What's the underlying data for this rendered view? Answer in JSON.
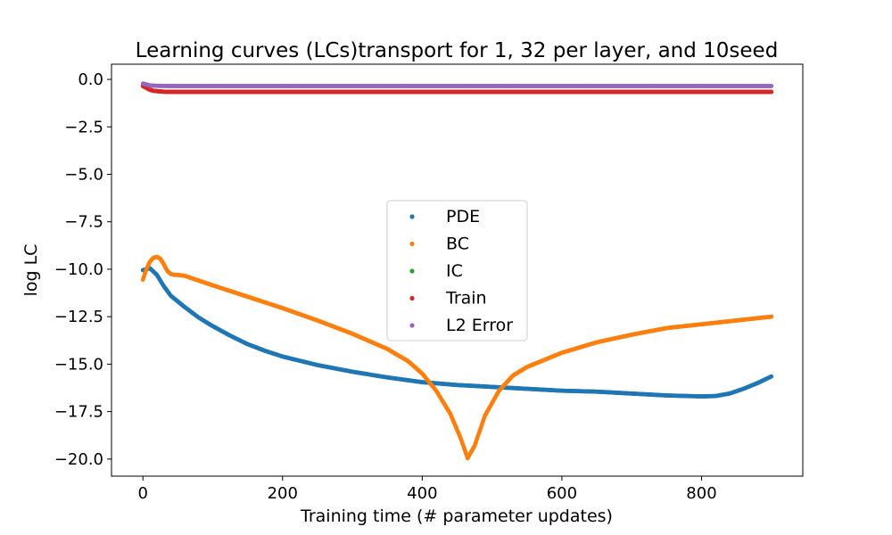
{
  "chart_data": {
    "type": "scatter",
    "title": "Learning curves (LCs)transport for 1, 32 per layer, and 10seed",
    "xlabel": "Training time (# parameter updates)",
    "ylabel": "log LC",
    "xlim": [
      -45,
      945
    ],
    "ylim": [
      -20.9,
      0.8
    ],
    "xticks": [
      0,
      200,
      400,
      600,
      800
    ],
    "xtick_labels": [
      "0",
      "200",
      "400",
      "600",
      "800"
    ],
    "yticks": [
      0.0,
      -2.5,
      -5.0,
      -7.5,
      -10.0,
      -12.5,
      -15.0,
      -17.5,
      -20.0
    ],
    "ytick_labels": [
      "0.0",
      "−2.5",
      "−5.0",
      "−7.5",
      "−10.0",
      "−12.5",
      "−15.0",
      "−17.5",
      "−20.0"
    ],
    "grid": false,
    "legend_position": "center",
    "series": [
      {
        "name": "PDE",
        "color": "#1f77b4",
        "x": [
          0,
          10,
          20,
          30,
          40,
          50,
          60,
          80,
          100,
          125,
          150,
          175,
          200,
          250,
          300,
          350,
          400,
          450,
          500,
          550,
          600,
          650,
          700,
          750,
          800,
          820,
          840,
          860,
          880,
          900
        ],
        "y": [
          -10.05,
          -9.95,
          -10.3,
          -10.9,
          -11.4,
          -11.7,
          -12.0,
          -12.55,
          -13.0,
          -13.5,
          -13.95,
          -14.3,
          -14.6,
          -15.05,
          -15.4,
          -15.7,
          -15.95,
          -16.1,
          -16.2,
          -16.3,
          -16.4,
          -16.45,
          -16.55,
          -16.65,
          -16.7,
          -16.68,
          -16.55,
          -16.3,
          -16.0,
          -15.65
        ]
      },
      {
        "name": "BC",
        "color": "#ff7f0e",
        "x": [
          0,
          5,
          10,
          15,
          20,
          25,
          30,
          35,
          40,
          45,
          50,
          60,
          80,
          100,
          150,
          200,
          250,
          300,
          350,
          380,
          400,
          420,
          440,
          455,
          465,
          475,
          490,
          510,
          530,
          550,
          600,
          650,
          700,
          750,
          800,
          850,
          900
        ],
        "y": [
          -10.55,
          -10.0,
          -9.6,
          -9.4,
          -9.35,
          -9.45,
          -9.75,
          -10.1,
          -10.25,
          -10.3,
          -10.3,
          -10.35,
          -10.6,
          -10.85,
          -11.45,
          -12.05,
          -12.7,
          -13.4,
          -14.2,
          -14.85,
          -15.5,
          -16.4,
          -17.6,
          -18.9,
          -19.95,
          -19.3,
          -17.7,
          -16.4,
          -15.6,
          -15.15,
          -14.4,
          -13.85,
          -13.45,
          -13.1,
          -12.9,
          -12.7,
          -12.5
        ]
      },
      {
        "name": "IC",
        "color": "#2ca02c",
        "x": [
          0,
          5,
          10,
          15,
          20,
          30,
          50,
          100,
          200,
          300,
          400,
          500,
          600,
          700,
          800,
          900
        ],
        "y": [
          -0.35,
          -0.45,
          -0.55,
          -0.6,
          -0.62,
          -0.65,
          -0.66,
          -0.66,
          -0.66,
          -0.66,
          -0.66,
          -0.66,
          -0.66,
          -0.66,
          -0.66,
          -0.66
        ]
      },
      {
        "name": "Train",
        "color": "#d62728",
        "x": [
          0,
          5,
          10,
          15,
          20,
          30,
          50,
          100,
          200,
          300,
          400,
          500,
          600,
          700,
          800,
          900
        ],
        "y": [
          -0.35,
          -0.45,
          -0.55,
          -0.6,
          -0.62,
          -0.65,
          -0.66,
          -0.66,
          -0.66,
          -0.66,
          -0.66,
          -0.66,
          -0.66,
          -0.66,
          -0.66,
          -0.66
        ]
      },
      {
        "name": "L2 Error",
        "color": "#9467bd",
        "x": [
          0,
          5,
          10,
          20,
          40,
          100,
          200,
          300,
          400,
          500,
          600,
          700,
          800,
          900
        ],
        "y": [
          -0.22,
          -0.27,
          -0.32,
          -0.34,
          -0.35,
          -0.35,
          -0.35,
          -0.35,
          -0.35,
          -0.35,
          -0.35,
          -0.35,
          -0.35,
          -0.35
        ]
      }
    ]
  }
}
